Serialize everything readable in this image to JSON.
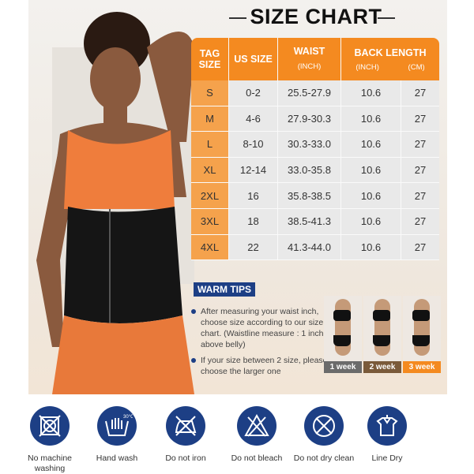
{
  "title": "SIZE CHART",
  "table": {
    "headers": {
      "tag": "TAG SIZE",
      "us": "US SIZE",
      "waist": "WAIST",
      "waist_unit": "(INCH)",
      "back": "BACK LENGTH",
      "back_inch": "(INCH)",
      "back_cm": "(CM)"
    },
    "rows": [
      [
        "S",
        "0-2",
        "25.5-27.9",
        "10.6",
        "27"
      ],
      [
        "M",
        "4-6",
        "27.9-30.3",
        "10.6",
        "27"
      ],
      [
        "L",
        "8-10",
        "30.3-33.0",
        "10.6",
        "27"
      ],
      [
        "XL",
        "12-14",
        "33.0-35.8",
        "10.6",
        "27"
      ],
      [
        "2XL",
        "16",
        "35.8-38.5",
        "10.6",
        "27"
      ],
      [
        "3XL",
        "18",
        "38.5-41.3",
        "10.6",
        "27"
      ],
      [
        "4XL",
        "22",
        "41.3-44.0",
        "10.6",
        "27"
      ]
    ]
  },
  "warm_tips": {
    "label": "WARM TIPS",
    "tips": [
      "After measuring your waist inch, choose size according to our size chart. (Waistline measure : 1 inch above belly)",
      "If your size between 2 size, please choose the larger one"
    ]
  },
  "weeks": [
    {
      "label": "1 week",
      "color": "#6b6b6b"
    },
    {
      "label": "2 week",
      "color": "#7a5a3a"
    },
    {
      "label": "3 week",
      "color": "#f48a20"
    }
  ],
  "care": [
    {
      "label": "No machine washing",
      "icon": "no-machine-wash-icon"
    },
    {
      "label": "Hand wash",
      "icon": "hand-wash-icon",
      "temp": "30°C"
    },
    {
      "label": "Do not iron",
      "icon": "no-iron-icon"
    },
    {
      "label": "Do not bleach",
      "icon": "no-bleach-icon"
    },
    {
      "label": "Do not dry clean",
      "icon": "no-dry-clean-icon"
    },
    {
      "label": "Line Dry",
      "icon": "line-dry-icon"
    }
  ],
  "colors": {
    "accent": "#f48a20",
    "navy": "#1d3f85"
  }
}
